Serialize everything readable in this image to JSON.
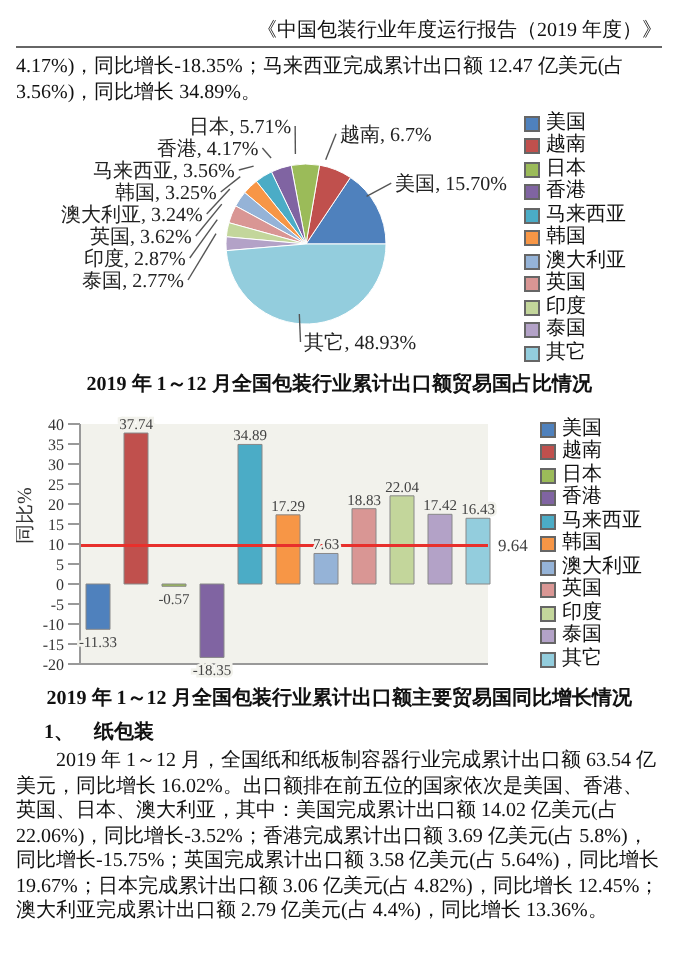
{
  "chart_data": [
    {
      "type": "pie",
      "title": "2019 年 1～12 月全国包装行业累计出口额贸易国占比情况",
      "categories": [
        "美国",
        "越南",
        "日本",
        "香港",
        "马来西亚",
        "韩国",
        "澳大利亚",
        "英国",
        "印度",
        "泰国",
        "其它"
      ],
      "values": [
        15.7,
        6.7,
        5.71,
        4.17,
        3.56,
        3.25,
        3.24,
        3.62,
        2.87,
        2.77,
        48.93
      ],
      "value_labels": [
        "美国, 15.70%",
        "越南, 6.7%",
        "日本, 5.71%",
        "香港, 4.17%",
        "马来西亚, 3.56%",
        "韩国, 3.25%",
        "澳大利亚, 3.24%",
        "英国, 3.62%",
        "印度, 2.87%",
        "泰国, 2.77%",
        "其它, 48.93%"
      ],
      "colors": [
        "#4f81bd",
        "#c0504d",
        "#9bbb59",
        "#8064a2",
        "#4bacc6",
        "#f79646",
        "#95b3d7",
        "#d99694",
        "#c3d69b",
        "#b3a2c7",
        "#93cddd"
      ],
      "legend": "right",
      "annotations": [
        "《中国包装行业年度运行报告（2019 年度）》",
        "4.17%)，同比增长-18.35%；马来西亚完成累计出口额 12.47 亿美元(占 3.56%)，同比增长 34.89%。"
      ]
    },
    {
      "type": "bar",
      "title": "2019 年 1～12 月全国包装行业累计出口额主要贸易国同比增长情况",
      "ylabel": "同比%",
      "categories": [
        null
      ],
      "series": [
        {
          "name": "美国",
          "color": "#4f81bd",
          "values": [
            -11.33
          ]
        },
        {
          "name": "越南",
          "color": "#c0504d",
          "values": [
            37.74
          ]
        },
        {
          "name": "日本",
          "color": "#9bbb59",
          "values": [
            -0.57
          ]
        },
        {
          "name": "香港",
          "color": "#8064a2",
          "values": [
            -18.35
          ]
        },
        {
          "name": "马来西亚",
          "color": "#4bacc6",
          "values": [
            34.89
          ]
        },
        {
          "name": "韩国",
          "color": "#f79646",
          "values": [
            17.29
          ]
        },
        {
          "name": "澳大利亚",
          "color": "#95b3d7",
          "values": [
            7.63
          ]
        },
        {
          "name": "英国",
          "color": "#d99694",
          "values": [
            18.83
          ]
        },
        {
          "name": "印度",
          "color": "#c3d69b",
          "values": [
            22.04
          ]
        },
        {
          "name": "泰国",
          "color": "#b3a2c7",
          "values": [
            17.42
          ]
        },
        {
          "name": "其它",
          "color": "#93cddd",
          "values": [
            16.43
          ]
        }
      ],
      "data_labels": true,
      "ylim": [
        -20,
        40
      ],
      "yticks": [
        -20,
        -15,
        -10,
        -5,
        0,
        5,
        10,
        15,
        20,
        25,
        30,
        35,
        40
      ],
      "tick_labels": "y",
      "legend": "right",
      "ref_lines": [
        {
          "axis": "y",
          "value": 9.64,
          "label": "9.64",
          "color": "#e8302c"
        }
      ],
      "annotations": [
        "1、　纸包装",
        "2019 年 1～12 月，全国纸和纸板制容器行业完成累计出口额 63.54 亿美元，同比增长 16.02%。出口额排在前五位的国家依次是美国、香港、英国、日本、澳大利亚，其中：美国完成累计出口额 14.02 亿美元(占 22.06%)，同比增长-3.52%；香港完成累计出口额 3.69 亿美元(占 5.8%)，同比增长-15.75%；英国完成累计出口额 3.58 亿美元(占 5.64%)，同比增长 19.67%；日本完成累计出口额 3.06 亿美元(占 4.82%)，同比增长 12.45%；澳大利亚完成累计出口额 2.79 亿美元(占 4.4%)，同比增长 13.36%。"
      ]
    }
  ]
}
